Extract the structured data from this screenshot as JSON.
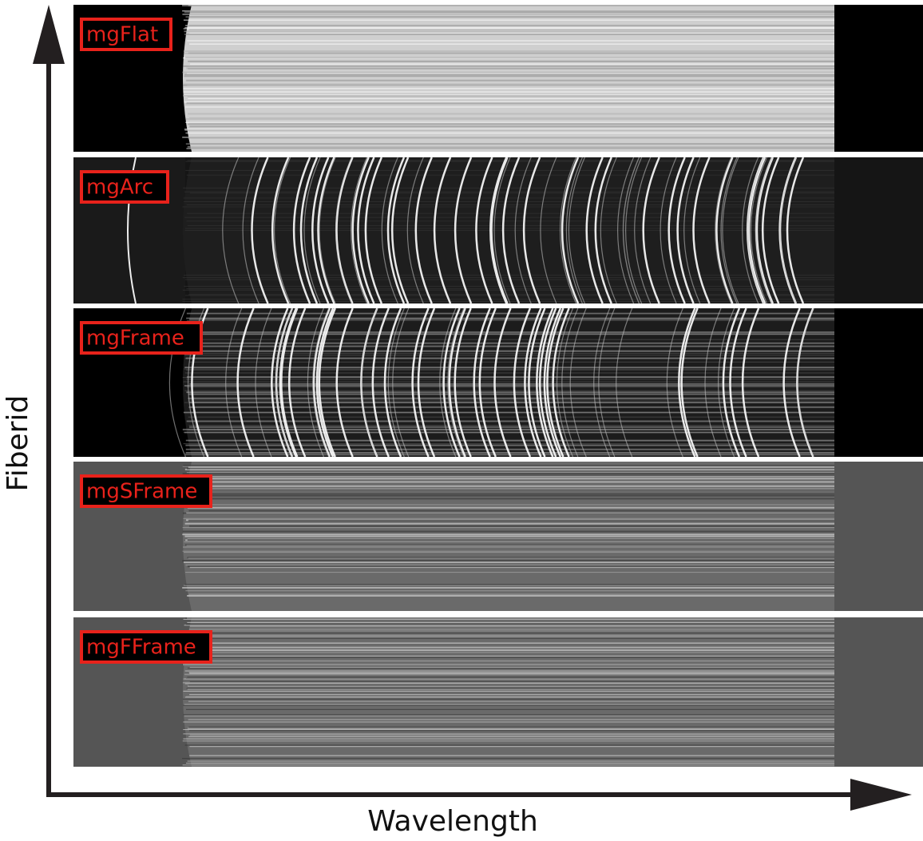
{
  "panels": [
    {
      "label": "mgFlat"
    },
    {
      "label": "mgArc"
    },
    {
      "label": "mgFrame"
    },
    {
      "label": "mgSFrame"
    },
    {
      "label": "mgFFrame"
    }
  ],
  "axes": {
    "x_label": "Wavelength",
    "y_label": "Fiberid"
  }
}
